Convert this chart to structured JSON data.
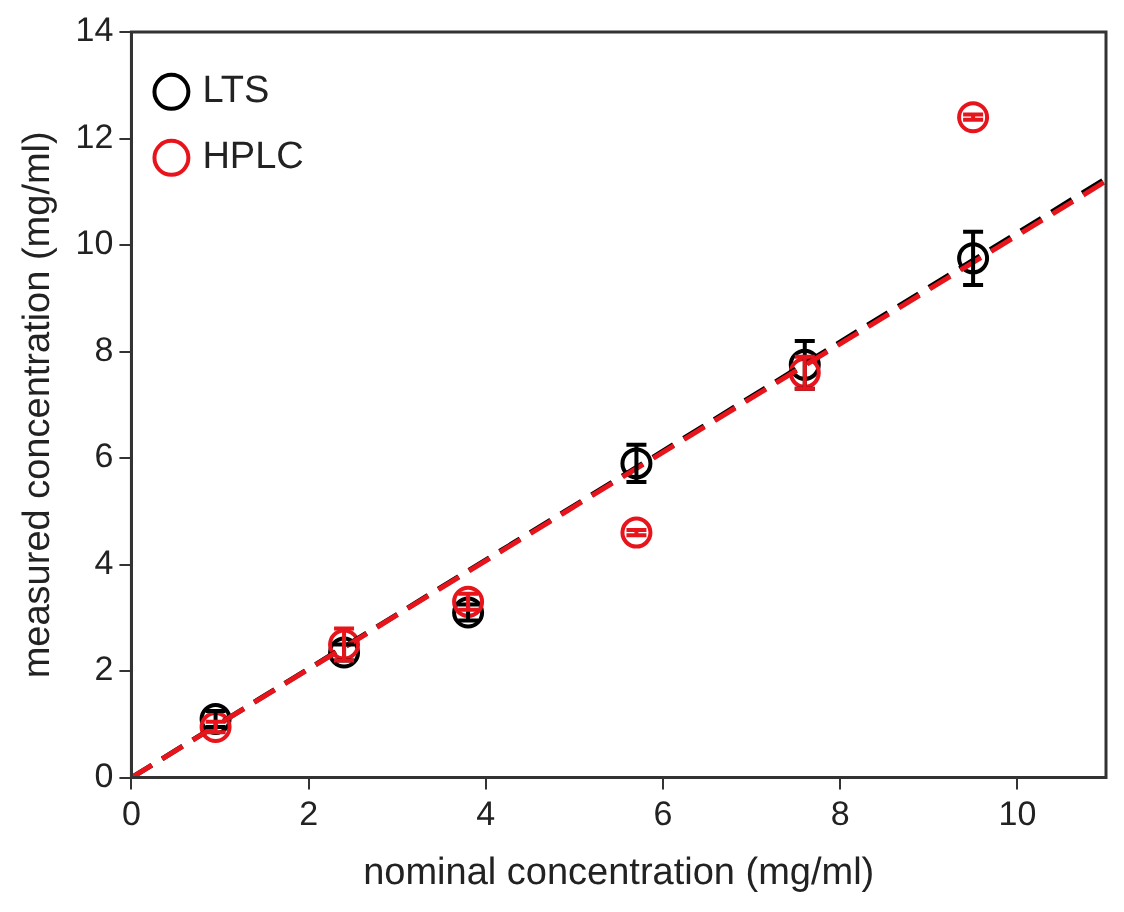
{
  "chart_data": {
    "type": "scatter",
    "xlabel": "nominal concentration (mg/ml)",
    "ylabel": "measured concentration (mg/ml)",
    "xlim": [
      0,
      11
    ],
    "xticks": [
      0,
      2,
      4,
      6,
      8,
      10
    ],
    "ylim": [
      0,
      14
    ],
    "yticks": [
      0,
      2,
      4,
      6,
      8,
      10,
      12,
      14
    ],
    "grid": false,
    "legend": "top left",
    "x": [
      0.95,
      2.4,
      3.8,
      5.7,
      7.6,
      9.5
    ],
    "series": [
      {
        "name": "LTS",
        "color": "#000000",
        "marker": "circle",
        "values": [
          1.1,
          2.35,
          3.1,
          5.9,
          7.75,
          9.75
        ],
        "errors": [
          0.15,
          0.15,
          0.15,
          0.35,
          0.45,
          0.5
        ]
      },
      {
        "name": "HPLC",
        "color": "#e8141c",
        "marker": "circle",
        "values": [
          0.95,
          2.5,
          3.3,
          4.6,
          7.6,
          12.4
        ],
        "errors": [
          0.1,
          0.3,
          0.15,
          0.05,
          0.3,
          0.05
        ]
      },
      {
        "type": "line",
        "color": "#000000",
        "marker": "none",
        "line_style": "dashed",
        "x": [
          0,
          5.5,
          11
        ],
        "values": [
          0,
          5.62,
          11.25
        ]
      },
      {
        "type": "line",
        "color": "#e8141c",
        "marker": "none",
        "line_style": "dashed",
        "x": [
          0,
          5.5,
          11
        ],
        "values": [
          0,
          5.6,
          11.2
        ]
      }
    ]
  }
}
